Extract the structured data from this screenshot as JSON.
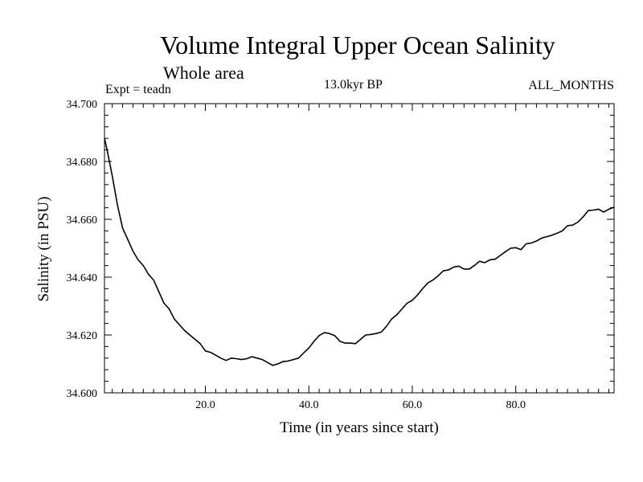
{
  "chart_data": {
    "type": "line",
    "title": "Volume Integral Upper Ocean Salinity",
    "subtitle": "Whole area",
    "annotations": {
      "experiment": "Expt = teadn",
      "period": "13.0kyr BP",
      "months": "ALL_MONTHS"
    },
    "xlabel": "Time (in years since start)",
    "ylabel": "Salinity (in PSU)",
    "xlim": [
      0.5,
      99
    ],
    "ylim": [
      34.6,
      34.7
    ],
    "x_ticks": [
      20,
      40,
      60,
      80
    ],
    "x_tick_labels": [
      "20.0",
      "40.0",
      "60.0",
      "80.0"
    ],
    "y_ticks": [
      34.6,
      34.62,
      34.64,
      34.66,
      34.68,
      34.7
    ],
    "y_tick_labels": [
      "34.600",
      "34.620",
      "34.640",
      "34.660",
      "34.680",
      "34.700"
    ],
    "grid": false,
    "series": [
      {
        "name": "Salinity",
        "x": [
          0.5,
          1,
          2,
          3,
          4,
          5,
          6,
          7,
          8,
          9,
          10,
          11,
          12,
          13,
          14,
          15,
          16,
          17,
          18,
          19,
          20,
          21,
          22,
          23,
          24,
          25,
          26,
          27,
          28,
          29,
          30,
          31,
          32,
          33,
          34,
          35,
          36,
          37,
          38,
          39,
          40,
          41,
          42,
          43,
          44,
          45,
          46,
          47,
          48,
          49,
          50,
          51,
          52,
          53,
          54,
          55,
          56,
          57,
          58,
          59,
          60,
          61,
          62,
          63,
          64,
          65,
          66,
          67,
          68,
          69,
          70,
          71,
          72,
          73,
          74,
          75,
          76,
          77,
          78,
          79,
          80,
          81,
          82,
          83,
          84,
          85,
          86,
          87,
          88,
          89,
          90,
          91,
          92,
          93,
          94,
          95,
          96,
          97,
          98,
          99
        ],
        "values": [
          34.688,
          34.684,
          34.675,
          34.665,
          34.657,
          34.653,
          34.649,
          34.646,
          34.644,
          34.641,
          34.639,
          34.635,
          34.631,
          34.629,
          34.6255,
          34.6235,
          34.6215,
          34.62,
          34.6185,
          34.617,
          34.6145,
          34.614,
          34.613,
          34.612,
          34.6112,
          34.612,
          34.6118,
          34.6115,
          34.6118,
          34.6125,
          34.612,
          34.6115,
          34.6105,
          34.6095,
          34.61,
          34.6108,
          34.611,
          34.6115,
          34.612,
          34.6138,
          34.6155,
          34.6178,
          34.6198,
          34.6208,
          34.6205,
          34.6198,
          34.6178,
          34.6172,
          34.6172,
          34.617,
          34.6185,
          34.62,
          34.6202,
          34.6205,
          34.621,
          34.623,
          34.6255,
          34.627,
          34.629,
          34.631,
          34.632,
          34.6338,
          34.636,
          34.638,
          34.639,
          34.6405,
          34.6422,
          34.6425,
          34.6435,
          34.6438,
          34.6428,
          34.6428,
          34.644,
          34.6455,
          34.645,
          34.646,
          34.6462,
          34.6475,
          34.6488,
          34.65,
          34.6502,
          34.6495,
          34.6515,
          34.6518,
          34.6525,
          34.6535,
          34.654,
          34.6545,
          34.6552,
          34.656,
          34.6578,
          34.658,
          34.659,
          34.6608,
          34.663,
          34.6632,
          34.6635,
          34.6625,
          34.6635,
          34.6642
        ]
      }
    ]
  }
}
